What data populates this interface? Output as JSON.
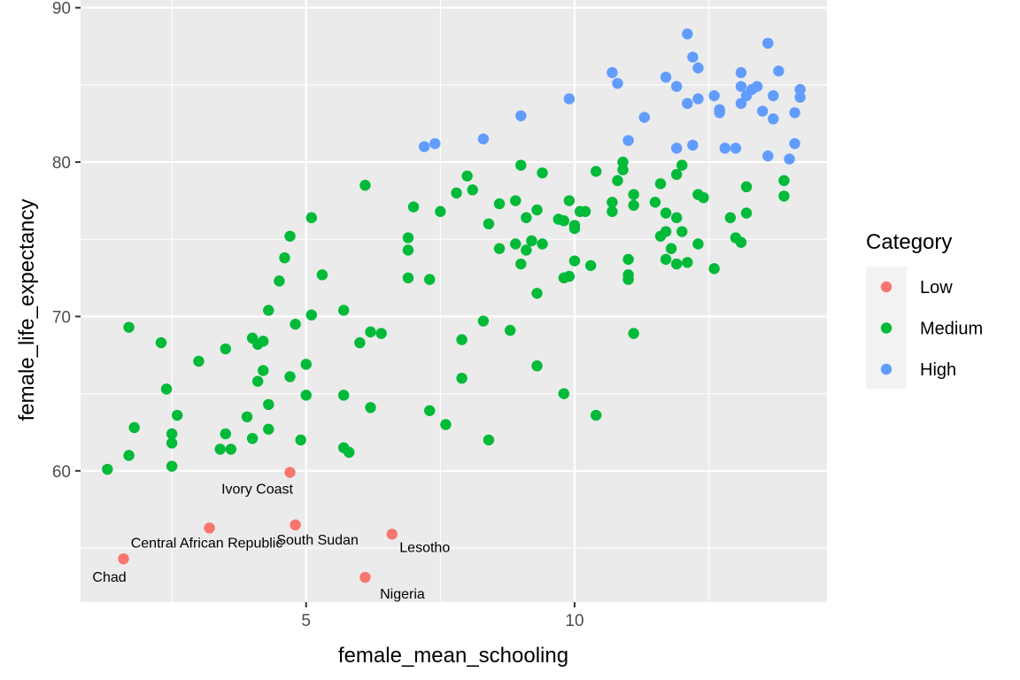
{
  "chart_data": {
    "type": "scatter",
    "xlabel": "female_mean_schooling",
    "ylabel": "female_life_expectancy",
    "xlim": [
      0.8,
      14.7
    ],
    "ylim": [
      51.5,
      90.5
    ],
    "x_ticks": [
      5,
      10
    ],
    "x_tick_labels": [
      "5",
      "10"
    ],
    "y_ticks": [
      60,
      70,
      80,
      90
    ],
    "y_tick_labels": [
      "60",
      "70",
      "80",
      "90"
    ],
    "grid": true,
    "legend": {
      "title": "Category",
      "position": "right"
    },
    "series": [
      {
        "name": "Low",
        "color": "#F8766D",
        "points": [
          {
            "x": 1.6,
            "y": 54.3,
            "label": "Chad"
          },
          {
            "x": 3.2,
            "y": 56.3,
            "label": "Central African Republic"
          },
          {
            "x": 4.7,
            "y": 59.9,
            "label": "Ivory Coast"
          },
          {
            "x": 4.8,
            "y": 56.5,
            "label": "South Sudan"
          },
          {
            "x": 6.1,
            "y": 53.1,
            "label": "Nigeria"
          },
          {
            "x": 6.6,
            "y": 55.9,
            "label": "Lesotho"
          }
        ]
      },
      {
        "name": "Medium",
        "color": "#00BA38",
        "points": [
          {
            "x": 1.3,
            "y": 60.1
          },
          {
            "x": 1.7,
            "y": 61.0
          },
          {
            "x": 1.7,
            "y": 69.3
          },
          {
            "x": 1.8,
            "y": 62.8
          },
          {
            "x": 2.3,
            "y": 68.3
          },
          {
            "x": 2.4,
            "y": 65.3
          },
          {
            "x": 2.5,
            "y": 62.4
          },
          {
            "x": 2.5,
            "y": 61.8
          },
          {
            "x": 2.5,
            "y": 60.3
          },
          {
            "x": 2.6,
            "y": 63.6
          },
          {
            "x": 3.0,
            "y": 67.1
          },
          {
            "x": 3.4,
            "y": 61.4
          },
          {
            "x": 3.5,
            "y": 62.4
          },
          {
            "x": 3.5,
            "y": 67.9
          },
          {
            "x": 3.6,
            "y": 61.4
          },
          {
            "x": 3.9,
            "y": 63.5
          },
          {
            "x": 4.0,
            "y": 62.1
          },
          {
            "x": 4.0,
            "y": 68.6
          },
          {
            "x": 4.1,
            "y": 68.2
          },
          {
            "x": 4.1,
            "y": 65.8
          },
          {
            "x": 4.2,
            "y": 68.4
          },
          {
            "x": 4.2,
            "y": 66.5
          },
          {
            "x": 4.3,
            "y": 70.4
          },
          {
            "x": 4.3,
            "y": 64.3
          },
          {
            "x": 4.3,
            "y": 62.7
          },
          {
            "x": 4.5,
            "y": 72.3
          },
          {
            "x": 4.6,
            "y": 73.8
          },
          {
            "x": 4.7,
            "y": 75.2
          },
          {
            "x": 4.7,
            "y": 66.1
          },
          {
            "x": 4.8,
            "y": 69.5
          },
          {
            "x": 4.9,
            "y": 62.0
          },
          {
            "x": 5.0,
            "y": 66.9
          },
          {
            "x": 5.0,
            "y": 64.9
          },
          {
            "x": 5.1,
            "y": 76.4
          },
          {
            "x": 5.1,
            "y": 70.1
          },
          {
            "x": 5.3,
            "y": 72.7
          },
          {
            "x": 5.7,
            "y": 70.4
          },
          {
            "x": 5.7,
            "y": 64.9
          },
          {
            "x": 5.7,
            "y": 61.5
          },
          {
            "x": 5.8,
            "y": 61.2
          },
          {
            "x": 6.0,
            "y": 68.3
          },
          {
            "x": 6.1,
            "y": 78.5
          },
          {
            "x": 6.2,
            "y": 69.0
          },
          {
            "x": 6.2,
            "y": 64.1
          },
          {
            "x": 6.4,
            "y": 68.9
          },
          {
            "x": 6.9,
            "y": 75.1
          },
          {
            "x": 6.9,
            "y": 74.3
          },
          {
            "x": 6.9,
            "y": 72.5
          },
          {
            "x": 7.0,
            "y": 77.1
          },
          {
            "x": 7.3,
            "y": 72.4
          },
          {
            "x": 7.3,
            "y": 63.9
          },
          {
            "x": 7.5,
            "y": 76.8
          },
          {
            "x": 7.6,
            "y": 63.0
          },
          {
            "x": 7.8,
            "y": 78.0
          },
          {
            "x": 7.9,
            "y": 68.5
          },
          {
            "x": 7.9,
            "y": 66.0
          },
          {
            "x": 8.0,
            "y": 79.1
          },
          {
            "x": 8.1,
            "y": 78.2
          },
          {
            "x": 8.3,
            "y": 69.7
          },
          {
            "x": 8.4,
            "y": 76.0
          },
          {
            "x": 8.4,
            "y": 62.0
          },
          {
            "x": 8.6,
            "y": 77.3
          },
          {
            "x": 8.6,
            "y": 74.4
          },
          {
            "x": 8.8,
            "y": 69.1
          },
          {
            "x": 8.9,
            "y": 77.5
          },
          {
            "x": 8.9,
            "y": 74.7
          },
          {
            "x": 9.0,
            "y": 79.8
          },
          {
            "x": 9.0,
            "y": 73.4
          },
          {
            "x": 9.1,
            "y": 76.4
          },
          {
            "x": 9.1,
            "y": 74.3
          },
          {
            "x": 9.2,
            "y": 74.9
          },
          {
            "x": 9.3,
            "y": 76.9
          },
          {
            "x": 9.3,
            "y": 71.5
          },
          {
            "x": 9.3,
            "y": 66.8
          },
          {
            "x": 9.4,
            "y": 79.3
          },
          {
            "x": 9.4,
            "y": 74.7
          },
          {
            "x": 9.7,
            "y": 76.3
          },
          {
            "x": 9.8,
            "y": 76.2
          },
          {
            "x": 9.8,
            "y": 72.5
          },
          {
            "x": 9.8,
            "y": 65.0
          },
          {
            "x": 9.9,
            "y": 77.5
          },
          {
            "x": 9.9,
            "y": 72.6
          },
          {
            "x": 10.0,
            "y": 75.9
          },
          {
            "x": 10.0,
            "y": 75.7
          },
          {
            "x": 10.0,
            "y": 73.6
          },
          {
            "x": 10.1,
            "y": 76.8
          },
          {
            "x": 10.2,
            "y": 76.8
          },
          {
            "x": 10.3,
            "y": 73.3
          },
          {
            "x": 10.4,
            "y": 79.4
          },
          {
            "x": 10.4,
            "y": 63.6
          },
          {
            "x": 10.7,
            "y": 77.4
          },
          {
            "x": 10.7,
            "y": 76.8
          },
          {
            "x": 10.8,
            "y": 78.8
          },
          {
            "x": 10.9,
            "y": 80.0
          },
          {
            "x": 10.9,
            "y": 79.5
          },
          {
            "x": 11.0,
            "y": 73.7
          },
          {
            "x": 11.0,
            "y": 72.7
          },
          {
            "x": 11.0,
            "y": 72.4
          },
          {
            "x": 11.1,
            "y": 77.9
          },
          {
            "x": 11.1,
            "y": 77.2
          },
          {
            "x": 11.1,
            "y": 68.9
          },
          {
            "x": 11.5,
            "y": 77.4
          },
          {
            "x": 11.6,
            "y": 78.6
          },
          {
            "x": 11.6,
            "y": 75.2
          },
          {
            "x": 11.7,
            "y": 76.7
          },
          {
            "x": 11.7,
            "y": 75.5
          },
          {
            "x": 11.7,
            "y": 73.7
          },
          {
            "x": 11.8,
            "y": 74.4
          },
          {
            "x": 11.9,
            "y": 79.2
          },
          {
            "x": 11.9,
            "y": 76.4
          },
          {
            "x": 11.9,
            "y": 73.4
          },
          {
            "x": 12.0,
            "y": 79.8
          },
          {
            "x": 12.0,
            "y": 75.5
          },
          {
            "x": 12.1,
            "y": 73.5
          },
          {
            "x": 12.3,
            "y": 77.9
          },
          {
            "x": 12.3,
            "y": 74.7
          },
          {
            "x": 12.4,
            "y": 77.7
          },
          {
            "x": 12.6,
            "y": 73.1
          },
          {
            "x": 12.9,
            "y": 76.4
          },
          {
            "x": 13.0,
            "y": 75.1
          },
          {
            "x": 13.1,
            "y": 74.8
          },
          {
            "x": 13.2,
            "y": 78.4
          },
          {
            "x": 13.2,
            "y": 76.7
          },
          {
            "x": 13.9,
            "y": 78.8
          },
          {
            "x": 13.9,
            "y": 77.8
          }
        ]
      },
      {
        "name": "High",
        "color": "#619CFF",
        "points": [
          {
            "x": 7.2,
            "y": 81.0
          },
          {
            "x": 7.4,
            "y": 81.2
          },
          {
            "x": 8.3,
            "y": 81.5
          },
          {
            "x": 9.0,
            "y": 83.0
          },
          {
            "x": 9.9,
            "y": 84.1
          },
          {
            "x": 10.7,
            "y": 85.8
          },
          {
            "x": 10.8,
            "y": 85.1
          },
          {
            "x": 11.0,
            "y": 81.4
          },
          {
            "x": 11.3,
            "y": 82.9
          },
          {
            "x": 11.7,
            "y": 85.5
          },
          {
            "x": 11.9,
            "y": 84.9
          },
          {
            "x": 11.9,
            "y": 80.9
          },
          {
            "x": 12.1,
            "y": 88.3
          },
          {
            "x": 12.1,
            "y": 83.8
          },
          {
            "x": 12.2,
            "y": 86.8
          },
          {
            "x": 12.2,
            "y": 81.1
          },
          {
            "x": 12.3,
            "y": 86.1
          },
          {
            "x": 12.3,
            "y": 84.1
          },
          {
            "x": 12.6,
            "y": 84.3
          },
          {
            "x": 12.7,
            "y": 83.4
          },
          {
            "x": 12.7,
            "y": 83.2
          },
          {
            "x": 12.8,
            "y": 80.9
          },
          {
            "x": 13.0,
            "y": 80.9
          },
          {
            "x": 13.1,
            "y": 85.8
          },
          {
            "x": 13.1,
            "y": 84.9
          },
          {
            "x": 13.1,
            "y": 83.8
          },
          {
            "x": 13.2,
            "y": 84.3
          },
          {
            "x": 13.3,
            "y": 84.7
          },
          {
            "x": 13.4,
            "y": 84.9
          },
          {
            "x": 13.5,
            "y": 83.3
          },
          {
            "x": 13.6,
            "y": 87.7
          },
          {
            "x": 13.6,
            "y": 80.4
          },
          {
            "x": 13.7,
            "y": 84.3
          },
          {
            "x": 13.7,
            "y": 82.8
          },
          {
            "x": 13.8,
            "y": 85.9
          },
          {
            "x": 14.0,
            "y": 80.2
          },
          {
            "x": 14.1,
            "y": 83.2
          },
          {
            "x": 14.1,
            "y": 81.2
          },
          {
            "x": 14.2,
            "y": 84.7
          },
          {
            "x": 14.2,
            "y": 84.2
          }
        ]
      }
    ]
  }
}
